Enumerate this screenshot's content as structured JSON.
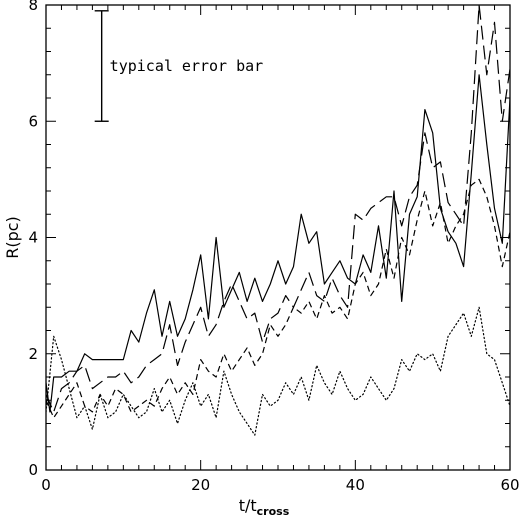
{
  "chart_data": {
    "type": "line",
    "xlabel": "t/t",
    "xlabel_sub": "cross",
    "ylabel": "R(pc)",
    "xlim": [
      0,
      60
    ],
    "ylim": [
      0,
      8
    ],
    "xticks": [
      0,
      20,
      40,
      60
    ],
    "yticks": [
      0,
      2,
      4,
      6,
      8
    ],
    "grid": false,
    "annotation": {
      "text": "typical error bar",
      "bar_x": 7.2,
      "bar_y_low": 6.0,
      "bar_y_high": 7.9
    },
    "series": [
      {
        "style": "solid",
        "x": [
          0,
          0.5,
          1,
          2,
          3,
          4,
          5,
          6,
          7,
          8,
          9,
          10,
          11,
          12,
          13,
          14,
          15,
          16,
          17,
          18,
          19,
          20,
          21,
          22,
          23,
          24,
          25,
          26,
          27,
          28,
          29,
          30,
          31,
          32,
          33,
          34,
          35,
          36,
          37,
          38,
          39,
          40,
          41,
          42,
          43,
          44,
          45,
          46,
          47,
          48,
          49,
          50,
          51,
          52,
          53,
          54,
          55,
          56,
          57,
          58,
          59,
          60
        ],
        "y": [
          1.5,
          1.0,
          1.6,
          1.6,
          1.7,
          1.7,
          2.0,
          1.9,
          1.9,
          1.9,
          1.9,
          1.9,
          2.4,
          2.2,
          2.7,
          3.1,
          2.3,
          2.9,
          2.3,
          2.6,
          3.1,
          3.7,
          2.6,
          4.0,
          2.8,
          3.1,
          3.4,
          2.9,
          3.3,
          2.9,
          3.2,
          3.6,
          3.2,
          3.5,
          4.4,
          3.9,
          4.1,
          3.2,
          3.4,
          3.6,
          3.3,
          3.2,
          3.7,
          3.4,
          4.2,
          3.3,
          4.8,
          2.9,
          4.4,
          4.7,
          6.2,
          5.8,
          4.5,
          4.1,
          3.9,
          3.5,
          5.1,
          6.8,
          5.6,
          4.5,
          3.9,
          6.4
        ]
      },
      {
        "style": "longdash",
        "x": [
          0,
          1,
          2,
          3,
          4,
          5,
          6,
          7,
          8,
          9,
          10,
          11,
          12,
          13,
          14,
          15,
          16,
          17,
          18,
          19,
          20,
          21,
          22,
          23,
          24,
          25,
          26,
          27,
          28,
          29,
          30,
          31,
          32,
          33,
          34,
          35,
          36,
          37,
          38,
          39,
          40,
          41,
          42,
          43,
          44,
          45,
          46,
          47,
          48,
          49,
          50,
          51,
          52,
          53,
          54,
          55,
          56,
          57,
          58,
          59,
          60
        ],
        "y": [
          1.3,
          1.0,
          1.4,
          1.5,
          1.7,
          1.8,
          1.4,
          1.5,
          1.6,
          1.6,
          1.7,
          1.5,
          1.6,
          1.8,
          1.9,
          2.0,
          2.5,
          1.8,
          2.2,
          2.5,
          2.8,
          2.3,
          2.5,
          2.9,
          3.2,
          2.9,
          2.6,
          2.7,
          2.2,
          2.6,
          2.7,
          3.0,
          2.8,
          3.1,
          3.4,
          3.0,
          2.9,
          3.3,
          3.0,
          2.8,
          4.4,
          4.3,
          4.5,
          4.6,
          4.7,
          4.7,
          4.2,
          4.7,
          4.9,
          5.8,
          5.2,
          5.3,
          4.6,
          4.4,
          4.2,
          5.8,
          8.0,
          6.8,
          7.7,
          6.0,
          6.9
        ]
      },
      {
        "style": "shortdash",
        "x": [
          0,
          1,
          2,
          3,
          4,
          5,
          6,
          7,
          8,
          9,
          10,
          11,
          12,
          13,
          14,
          15,
          16,
          17,
          18,
          19,
          20,
          21,
          22,
          23,
          24,
          25,
          26,
          27,
          28,
          29,
          30,
          31,
          32,
          33,
          34,
          35,
          36,
          37,
          38,
          39,
          40,
          41,
          42,
          43,
          44,
          45,
          46,
          47,
          48,
          49,
          50,
          51,
          52,
          53,
          54,
          55,
          56,
          57,
          58,
          59,
          60
        ],
        "y": [
          1.2,
          0.9,
          1.1,
          1.3,
          1.5,
          1.1,
          1.0,
          1.3,
          1.1,
          1.4,
          1.3,
          1.0,
          1.1,
          1.2,
          1.1,
          1.4,
          1.6,
          1.3,
          1.5,
          1.3,
          1.9,
          1.7,
          1.6,
          2.0,
          1.7,
          1.9,
          2.1,
          1.8,
          2.0,
          2.5,
          2.3,
          2.5,
          2.8,
          2.7,
          2.9,
          2.6,
          3.0,
          2.7,
          2.8,
          2.6,
          3.2,
          3.4,
          3.0,
          3.2,
          3.8,
          3.3,
          4.0,
          3.7,
          4.3,
          4.8,
          4.2,
          4.6,
          3.9,
          4.2,
          4.4,
          4.9,
          5.0,
          4.7,
          4.2,
          3.5,
          4.1
        ]
      },
      {
        "style": "dotted",
        "x": [
          0,
          1,
          2,
          3,
          4,
          5,
          6,
          7,
          8,
          9,
          10,
          11,
          12,
          13,
          14,
          15,
          16,
          17,
          18,
          19,
          20,
          21,
          22,
          23,
          24,
          25,
          26,
          27,
          28,
          29,
          30,
          31,
          32,
          33,
          34,
          35,
          36,
          37,
          38,
          39,
          40,
          41,
          42,
          43,
          44,
          45,
          46,
          47,
          48,
          49,
          50,
          51,
          52,
          53,
          54,
          55,
          56,
          57,
          58,
          59,
          60
        ],
        "y": [
          1.0,
          2.3,
          1.9,
          1.4,
          0.9,
          1.1,
          0.7,
          1.3,
          0.9,
          1.0,
          1.3,
          1.1,
          0.9,
          1.0,
          1.4,
          1.0,
          1.2,
          0.8,
          1.2,
          1.5,
          1.1,
          1.3,
          0.9,
          1.7,
          1.3,
          1.0,
          0.8,
          0.6,
          1.3,
          1.1,
          1.2,
          1.5,
          1.3,
          1.6,
          1.2,
          1.8,
          1.5,
          1.3,
          1.7,
          1.4,
          1.2,
          1.3,
          1.6,
          1.4,
          1.2,
          1.4,
          1.9,
          1.7,
          2.0,
          1.9,
          2.0,
          1.7,
          2.3,
          2.5,
          2.7,
          2.3,
          2.8,
          2.0,
          1.9,
          1.5,
          1.1
        ]
      }
    ]
  }
}
